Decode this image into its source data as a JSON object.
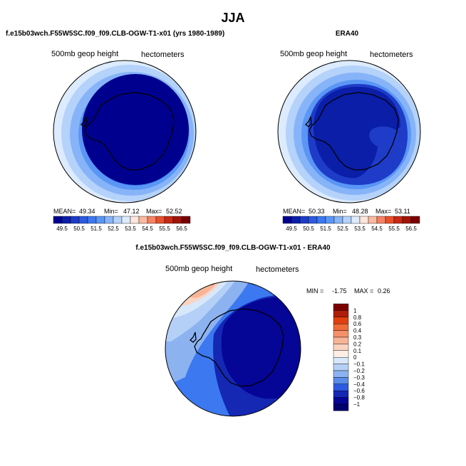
{
  "figure": {
    "title": "JJA",
    "contour_unit_label": "hectometers"
  },
  "chart_data": [
    {
      "type": "heatmap",
      "panel": "model",
      "title": "f.e15b03wch.F55W5SC.f09_f09.CLB-OGW-T1-x01 (yrs 1980-1989)",
      "subtitle": "500mb geop height",
      "units": "hectometers",
      "projection": "south-polar-stereographic",
      "stats": {
        "mean_label": "MEAN=",
        "mean": "49.34",
        "min_label": "Min=",
        "min": "47.12",
        "max_label": "Max=",
        "max": "52.52"
      },
      "levels": [
        "49.5",
        "50.5",
        "51.5",
        "52.5",
        "53.5",
        "54.5",
        "55.5",
        "56.5"
      ],
      "colors": [
        "#00008f",
        "#0a1ea8",
        "#1e3cc8",
        "#2d5ae0",
        "#3c78f0",
        "#5a96f5",
        "#87b4f8",
        "#b4d2fa",
        "#dcebfd",
        "#fde6dc",
        "#fab9a0",
        "#f58264",
        "#e6502d",
        "#c82814",
        "#a01408",
        "#7a0000"
      ],
      "legend": "bottom"
    },
    {
      "type": "heatmap",
      "panel": "obs",
      "title": "ERA40",
      "subtitle": "500mb geop height",
      "units": "hectometers",
      "projection": "south-polar-stereographic",
      "stats": {
        "mean_label": "MEAN=",
        "mean": "50.33",
        "min_label": "Min=",
        "min": "48.28",
        "max_label": "Max=",
        "max": "53.11"
      },
      "levels": [
        "49.5",
        "50.5",
        "51.5",
        "52.5",
        "53.5",
        "54.5",
        "55.5",
        "56.5"
      ],
      "colors": [
        "#00008f",
        "#0a1ea8",
        "#1e3cc8",
        "#2d5ae0",
        "#3c78f0",
        "#5a96f5",
        "#87b4f8",
        "#b4d2fa",
        "#dcebfd",
        "#fde6dc",
        "#fab9a0",
        "#f58264",
        "#e6502d",
        "#c82814",
        "#a01408",
        "#7a0000"
      ],
      "legend": "bottom"
    },
    {
      "type": "heatmap",
      "panel": "difference",
      "title": "f.e15b03wch.F55W5SC.f09_f09.CLB-OGW-T1-x01 - ERA40",
      "subtitle": "500mb geop height",
      "units": "hectometers",
      "projection": "south-polar-stereographic",
      "stats": {
        "min_label": "MIN =",
        "min": "-1.75",
        "max_label": "MAX =",
        "max": "0.26"
      },
      "levels": [
        "1",
        "0.8",
        "0.6",
        "0.4",
        "0.3",
        "0.2",
        "0.1",
        "0",
        "-0.1",
        "-0.2",
        "-0.3",
        "-0.4",
        "-0.6",
        "-0.8",
        "-1"
      ],
      "colors": [
        "#7a0000",
        "#b01e0a",
        "#e0400f",
        "#f06a3a",
        "#f5906a",
        "#f8b496",
        "#fbd3c1",
        "#fdeee6",
        "#d8e8fb",
        "#b4d0f6",
        "#8cb2f0",
        "#5a8ce8",
        "#2d5ae0",
        "#1428b4",
        "#050596",
        "#00006e"
      ],
      "legend": "right"
    }
  ]
}
